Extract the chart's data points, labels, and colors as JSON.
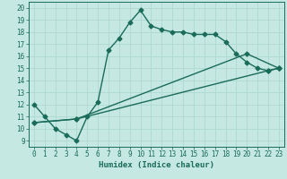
{
  "title": "",
  "xlabel": "Humidex (Indice chaleur)",
  "xlim": [
    -0.5,
    23.5
  ],
  "ylim": [
    8.5,
    20.5
  ],
  "xticks": [
    0,
    1,
    2,
    3,
    4,
    5,
    6,
    7,
    8,
    9,
    10,
    11,
    12,
    13,
    14,
    15,
    16,
    17,
    18,
    19,
    20,
    21,
    22,
    23
  ],
  "yticks": [
    9,
    10,
    11,
    12,
    13,
    14,
    15,
    16,
    17,
    18,
    19,
    20
  ],
  "bg_color": "#c5e8e2",
  "grid_color": "#aed8d0",
  "line_color": "#1a6b5a",
  "line1_x": [
    0,
    1,
    2,
    3,
    4,
    5,
    6,
    7,
    8,
    9,
    10,
    11,
    12,
    13,
    14,
    15,
    16,
    17,
    18,
    19,
    20,
    21,
    22,
    23
  ],
  "line1_y": [
    12,
    11,
    10,
    9.5,
    9,
    11,
    12.2,
    16.5,
    17.5,
    18.8,
    19.8,
    18.5,
    18.2,
    18.0,
    18.0,
    17.8,
    17.8,
    17.8,
    17.2,
    16.2,
    15.5,
    15.0,
    14.8,
    15.0
  ],
  "line2_x": [
    0,
    4,
    22,
    23
  ],
  "line2_y": [
    10.5,
    10.8,
    14.8,
    15.0
  ],
  "line3_x": [
    0,
    4,
    20,
    23
  ],
  "line3_y": [
    10.5,
    10.8,
    16.2,
    15.0
  ],
  "markersize": 2.5,
  "linewidth": 1.0
}
